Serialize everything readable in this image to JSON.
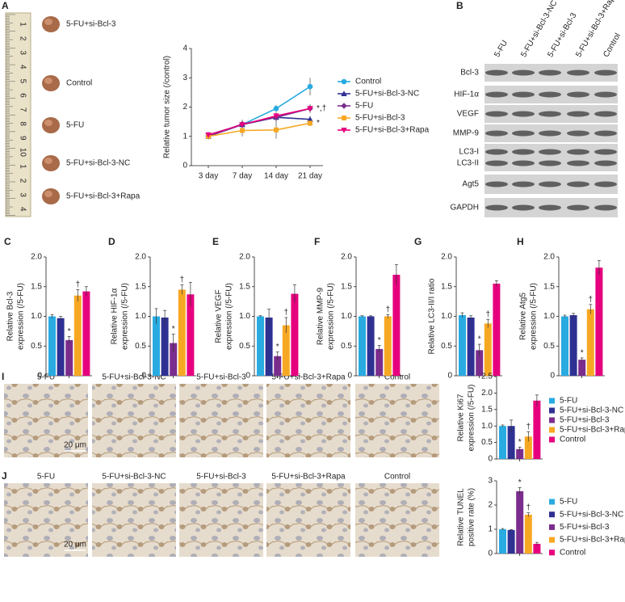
{
  "tumor_photos": {
    "label": "A",
    "samples": [
      "5-FU+si-Bcl-3",
      "Control",
      "5-FU",
      "5-FU+si-Bcl-3-NC",
      "5-FU+si-Bcl-3+Rapa"
    ],
    "ruler": [
      "1",
      "2",
      "3",
      "4",
      "5",
      "6",
      "7",
      "8",
      "9",
      "10",
      "1",
      "2",
      "3",
      "4"
    ]
  },
  "western_blot": {
    "label": "B",
    "lanes": [
      "5-FU",
      "5-FU+si-Bcl-3-NC",
      "5-FU+si-Bcl-3",
      "5-FU+si-Bcl-3+Rapa",
      "Control"
    ],
    "proteins": [
      "Bcl-3",
      "HIF-1α",
      "VEGF",
      "MMP-9",
      "LC3-I",
      "LC3-II",
      "Agt5",
      "GAPDH"
    ]
  },
  "micrographs": [
    {
      "label": "I",
      "columns": [
        "5-FU",
        "5-FU+si-Bcl-3-NC",
        "5-FU+si-Bcl-3",
        "5-FU+si-Bcl-3+Rapa",
        "Control"
      ],
      "scale_bar": "20 μm"
    },
    {
      "label": "J",
      "columns": [
        "5-FU",
        "5-FU+si-Bcl-3-NC",
        "5-FU+si-Bcl-3",
        "5-FU+si-Bcl-3+Rapa",
        "Control"
      ],
      "scale_bar": "20 μm"
    }
  ],
  "chart_data": [
    {
      "type": "line",
      "ylabel": [
        "Relative tumor size (/control)"
      ],
      "categories": [
        "3 day",
        "7 day",
        "14 day",
        "21 day"
      ],
      "ylim": [
        0,
        4
      ],
      "yticks": [
        0,
        1,
        2,
        3,
        4
      ],
      "series": [
        {
          "name": "Control",
          "color": "#29abe2",
          "marker": "circle",
          "values": [
            1.05,
            1.4,
            1.95,
            2.7
          ],
          "errors": [
            0.08,
            0.1,
            0.12,
            0.3
          ]
        },
        {
          "name": "5-FU+si-Bcl-3-NC",
          "color": "#2e3192",
          "marker": "triangle",
          "values": [
            1.0,
            1.4,
            1.65,
            1.58
          ],
          "errors": [
            0.08,
            0.12,
            0.15,
            0.12
          ]
        },
        {
          "name": "5-FU",
          "color": "#7b2d8e",
          "marker": "diamond",
          "values": [
            1.0,
            1.42,
            1.65,
            1.95
          ],
          "errors": [
            0.08,
            0.15,
            0.12,
            0.12
          ]
        },
        {
          "name": "5-FU+si-Bcl-3",
          "color": "#f7a823",
          "marker": "square",
          "values": [
            1.0,
            1.2,
            1.22,
            1.45
          ],
          "errors": [
            0.1,
            0.2,
            0.3,
            0.1
          ]
        },
        {
          "name": "5-FU+si-Bcl-3+Rapa",
          "color": "#e6007e",
          "marker": "triangle-down",
          "values": [
            1.05,
            1.4,
            1.7,
            1.95
          ],
          "errors": [
            0.1,
            0.12,
            0.12,
            0.15
          ]
        }
      ],
      "annotations": [
        {
          "text": "*,†",
          "series": 4,
          "index": 3
        },
        {
          "text": "*",
          "series": 3,
          "index": 3
        }
      ]
    },
    {
      "type": "bar",
      "label": "C",
      "ylabel": [
        "Relative Bcl-3",
        "expression (/5-FU)"
      ],
      "ylim": [
        0,
        2
      ],
      "yticks": [
        0,
        0.5,
        {
          "value": 1,
          "label": "1.0"
        },
        1.5,
        {
          "value": 2,
          "label": "2.0"
        }
      ],
      "colors": [
        "#29abe2",
        "#2e3192",
        "#7b2d8e",
        "#f7a823",
        "#e6007e"
      ],
      "values": [
        1.0,
        0.97,
        0.6,
        1.35,
        1.42
      ],
      "errors": [
        0.03,
        0.03,
        0.06,
        0.1,
        0.08
      ],
      "annotations": [
        {
          "text": "*",
          "index": 2
        },
        {
          "text": "†",
          "index": 3
        }
      ]
    },
    {
      "type": "bar",
      "label": "D",
      "ylabel": [
        "Relative HIF-1α",
        "expression (/5-FU)"
      ],
      "ylim": [
        0,
        2
      ],
      "yticks": [
        0,
        0.5,
        {
          "value": 1,
          "label": "1.0"
        },
        1.5,
        {
          "value": 2,
          "label": "2.0"
        }
      ],
      "colors": [
        "#29abe2",
        "#2e3192",
        "#7b2d8e",
        "#f7a823",
        "#e6007e"
      ],
      "values": [
        1.0,
        0.98,
        0.55,
        1.45,
        1.37
      ],
      "errors": [
        0.13,
        0.12,
        0.15,
        0.08,
        0.2
      ],
      "annotations": [
        {
          "text": "*",
          "index": 2
        },
        {
          "text": "†",
          "index": 3
        }
      ]
    },
    {
      "type": "bar",
      "label": "E",
      "ylabel": [
        "Relative VEGF",
        "expression (/5-FU)"
      ],
      "ylim": [
        0,
        2
      ],
      "yticks": [
        0,
        0.5,
        {
          "value": 1,
          "label": "1.0"
        },
        1.5,
        {
          "value": 2,
          "label": "2.0"
        }
      ],
      "colors": [
        "#29abe2",
        "#2e3192",
        "#7b2d8e",
        "#f7a823",
        "#e6007e"
      ],
      "values": [
        1.0,
        0.98,
        0.33,
        0.85,
        1.38
      ],
      "errors": [
        0.01,
        0.14,
        0.07,
        0.13,
        0.15
      ],
      "annotations": [
        {
          "text": "*",
          "index": 2
        },
        {
          "text": "†",
          "index": 3
        }
      ]
    },
    {
      "type": "bar",
      "label": "F",
      "ylabel": [
        "Relative MMP-9",
        "expression (/5-FU)"
      ],
      "ylim": [
        0,
        2
      ],
      "yticks": [
        0,
        0.5,
        {
          "value": 1,
          "label": "1.0"
        },
        1.5,
        {
          "value": 2,
          "label": "2.0"
        }
      ],
      "colors": [
        "#29abe2",
        "#2e3192",
        "#7b2d8e",
        "#f7a823",
        "#e6007e"
      ],
      "values": [
        1.0,
        1.0,
        0.45,
        1.0,
        1.7
      ],
      "errors": [
        0.01,
        0.01,
        0.06,
        0.03,
        0.17
      ],
      "annotations": [
        {
          "text": "*",
          "index": 2
        },
        {
          "text": "†",
          "index": 3
        }
      ]
    },
    {
      "type": "bar",
      "label": "G",
      "ylabel": [
        "Relative LC3-II/I ratio"
      ],
      "ylim": [
        0,
        2
      ],
      "yticks": [
        0,
        0.5,
        {
          "value": 1,
          "label": "1.0"
        },
        1.5,
        {
          "value": 2,
          "label": "2.0"
        }
      ],
      "colors": [
        "#29abe2",
        "#2e3192",
        "#7b2d8e",
        "#f7a823",
        "#e6007e"
      ],
      "values": [
        1.02,
        0.98,
        0.43,
        0.88,
        1.55
      ],
      "errors": [
        0.04,
        0.03,
        0.1,
        0.07,
        0.05
      ],
      "annotations": [
        {
          "text": "*",
          "index": 2
        },
        {
          "text": "†",
          "index": 3
        }
      ]
    },
    {
      "type": "bar",
      "label": "H",
      "ylabel": [
        "Relative Atg5",
        "expression (/5-FU)"
      ],
      "ylim": [
        0,
        2
      ],
      "yticks": [
        0,
        0.5,
        {
          "value": 1,
          "label": "1.0"
        },
        1.5,
        {
          "value": 2,
          "label": "2.0"
        }
      ],
      "colors": [
        "#29abe2",
        "#2e3192",
        "#7b2d8e",
        "#f7a823",
        "#e6007e"
      ],
      "values": [
        1.0,
        1.02,
        0.27,
        1.12,
        1.82
      ],
      "errors": [
        0.02,
        0.03,
        0.03,
        0.08,
        0.12
      ],
      "annotations": [
        {
          "text": "*",
          "index": 2
        },
        {
          "text": "†",
          "index": 3
        }
      ]
    },
    {
      "type": "bar",
      "ylabel": [
        "Relative Ki67",
        "expression (/5-FU)"
      ],
      "ylim": [
        0,
        2.5
      ],
      "yticks": [
        0,
        0.5,
        {
          "value": 1,
          "label": "1.0"
        },
        1.5,
        {
          "value": 2,
          "label": "2.0"
        },
        2.5
      ],
      "colors": [
        "#29abe2",
        "#2e3192",
        "#7b2d8e",
        "#f7a823",
        "#e6007e"
      ],
      "legend": [
        "5-FU",
        "5-FU+si-Bcl-3-NC",
        "5-FU+si-Bcl-3",
        "5-FU+si-Bcl-3+Rapa",
        "Control"
      ],
      "values": [
        1.0,
        1.0,
        0.3,
        0.68,
        1.77
      ],
      "errors": [
        0.03,
        0.18,
        0.06,
        0.15,
        0.17
      ],
      "annotations": [
        {
          "text": "*",
          "index": 2
        },
        {
          "text": "†",
          "index": 3
        }
      ]
    },
    {
      "type": "bar",
      "ylabel": [
        "Relative TUNEL",
        "positive rate (%)"
      ],
      "ylim": [
        0,
        3
      ],
      "yticks": [
        0,
        1,
        2,
        3
      ],
      "colors": [
        "#29abe2",
        "#2e3192",
        "#7b2d8e",
        "#f7a823",
        "#e6007e"
      ],
      "legend": [
        "5-FU",
        "5-FU+si-Bcl-3-NC",
        "5-FU+si-Bcl-3",
        "5-FU+si-Bcl-3+Rapa",
        "Control"
      ],
      "values": [
        1.0,
        0.97,
        2.57,
        1.6,
        0.4
      ],
      "errors": [
        0.03,
        0.02,
        0.15,
        0.08,
        0.06
      ],
      "annotations": [
        {
          "text": "*",
          "index": 2
        },
        {
          "text": "†",
          "index": 3
        }
      ]
    }
  ]
}
